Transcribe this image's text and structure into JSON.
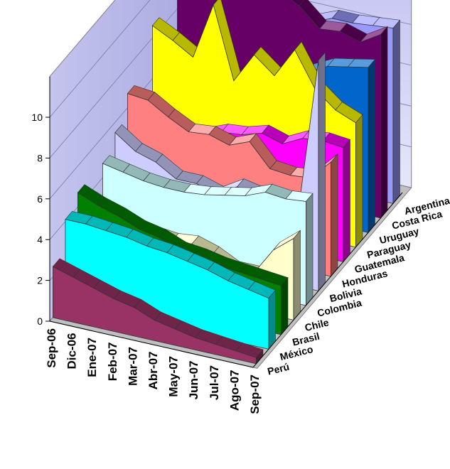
{
  "chart_data": {
    "type": "area",
    "title": "",
    "xlabel": "",
    "ylabel": "",
    "ylim": [
      0,
      12
    ],
    "yticks": [
      "0",
      "2",
      "4",
      "6",
      "8",
      "10"
    ],
    "categories": [
      "Sep-06",
      "Dic-06",
      "Ene-07",
      "Feb-07",
      "Mar-07",
      "Abr-07",
      "May-07",
      "Jun-07",
      "Jul-07",
      "Ago-07",
      "Sep-07"
    ],
    "grid": true,
    "legend": "none",
    "series": [
      {
        "name": "Perú",
        "color": "#993366",
        "values": [
          2.5,
          2.2,
          1.9,
          1.6,
          1.4,
          1.0,
          0.8,
          0.6,
          0.5,
          0.4,
          0.3
        ]
      },
      {
        "name": "México",
        "color": "#00FFFF",
        "values": [
          4.1,
          4.1,
          4.0,
          3.9,
          3.7,
          3.6,
          3.4,
          3.2,
          2.9,
          2.7,
          2.5
        ]
      },
      {
        "name": "Brasil",
        "color": "#008000",
        "values": [
          4.7,
          4.3,
          4.0,
          3.6,
          3.4,
          3.0,
          2.9,
          2.7,
          2.6,
          2.5,
          2.4
        ]
      },
      {
        "name": "Chile",
        "color": "#FFFFCC",
        "values": [
          2.1,
          2.1,
          2.4,
          2.6,
          2.5,
          2.6,
          2.3,
          1.8,
          1.8,
          3.2,
          4.0
        ]
      },
      {
        "name": "Colombia",
        "color": "#CCFFFF",
        "values": [
          4.7,
          4.5,
          4.3,
          4.2,
          4.2,
          4.3,
          4.5,
          4.7,
          5.1,
          5.0,
          5.1
        ]
      },
      {
        "name": "Bolivia",
        "color": "#CCCCFF",
        "values": [
          5.5,
          4.8,
          4.5,
          3.9,
          3.9,
          3.6,
          4.2,
          4.0,
          3.6,
          3.6,
          11.3
        ]
      },
      {
        "name": "Honduras",
        "color": "#FF8080",
        "values": [
          6.7,
          6.6,
          6.0,
          5.5,
          5.6,
          5.3,
          5.7,
          4.6,
          4.5,
          4.6,
          5.6
        ]
      },
      {
        "name": "Guatemala",
        "color": "#FF00FF",
        "values": [
          4.4,
          4.8,
          4.6,
          4.6,
          5.0,
          5.1,
          5.4,
          5.1,
          5.6,
          5.7,
          5.6
        ]
      },
      {
        "name": "Paraguay",
        "color": "#FFFF00",
        "values": [
          8.6,
          8.1,
          7.5,
          10.3,
          6.8,
          8.3,
          7.5,
          9.0,
          7.3,
          6.5,
          6.1
        ]
      },
      {
        "name": "Uruguay",
        "color": "#0066CC",
        "values": [
          3.0,
          3.0,
          4.0,
          5.2,
          5.9,
          6.3,
          6.3,
          7.2,
          7.7,
          7.9,
          8.1
        ]
      },
      {
        "name": "Costa Rica",
        "color": "#660066",
        "values": [
          10.0,
          10.0,
          10.0,
          10.0,
          10.0,
          10.0,
          9.5,
          8.6,
          8.7,
          8.4,
          9.0
        ]
      },
      {
        "name": "Argentina",
        "color": "#9999FF",
        "values": [
          10.2,
          9.9,
          9.7,
          9.5,
          9.0,
          8.4,
          8.0,
          8.4,
          8.4,
          8.5,
          8.6
        ]
      }
    ]
  }
}
